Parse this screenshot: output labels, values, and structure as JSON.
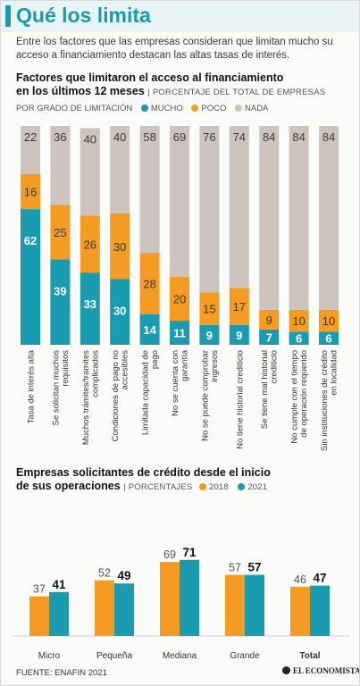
{
  "header": {
    "title": "Qué los limita",
    "subtitle": "Entre los factores que las empresas consideran que limitan mucho su acceso a financiamiento destacan las altas tasas de interés."
  },
  "colors": {
    "mucho": "#1a9bb0",
    "poco": "#f39b23",
    "nada": "#cdc5bd",
    "y2018": "#f39b23",
    "y2021": "#1a9bb0"
  },
  "chart1": {
    "title_line1": "Factores que limitaron el acceso al financiamiento",
    "title_line2": "en los últimos 12 meses",
    "units": "PORCENTAJE DEL TOTAL DE EMPRESAS",
    "legend_prefix": "POR GRADO DE LIMITACIÓN",
    "legend_mucho": "MUCHO",
    "legend_poco": "POCO",
    "legend_nada": "NADA"
  },
  "chart2": {
    "title_line1": "Empresas solicitantes de crédito desde el inicio",
    "title_line2": "de sus operaciones",
    "units": "PORCENTAJES",
    "legend_2018": "2018",
    "legend_2021": "2021"
  },
  "chart_data": [
    {
      "type": "bar",
      "stacked": true,
      "series": [
        {
          "name": "MUCHO",
          "values": [
            62,
            39,
            33,
            30,
            14,
            11,
            9,
            9,
            7,
            6,
            6
          ]
        },
        {
          "name": "POCO",
          "values": [
            16,
            25,
            26,
            30,
            28,
            20,
            15,
            17,
            9,
            10,
            10
          ]
        },
        {
          "name": "NADA",
          "values": [
            22,
            36,
            40,
            40,
            58,
            69,
            76,
            74,
            84,
            84,
            84
          ]
        }
      ],
      "categories": [
        [
          "Tasa de interés alta"
        ],
        [
          "Se solicitan muchos",
          "requisitos"
        ],
        [
          "Muchos trámites/tramites",
          "complicados"
        ],
        [
          "Condiciones de pago no",
          "accesibles"
        ],
        [
          "Limitada capacidad de",
          "pago"
        ],
        [
          "No se cuenta con",
          "garantía"
        ],
        [
          "No se puede comprobar",
          "ingresos"
        ],
        [
          "No tiene historial crediticio"
        ],
        [
          "Se tiene mal historial",
          "crediticio"
        ],
        [
          "No cumple con el tiempo",
          "de operación requerido"
        ],
        [
          "Sin instituciones de crédito",
          "en localidad"
        ]
      ]
    },
    {
      "type": "bar",
      "categories": [
        "Micro",
        "Pequeña",
        "Mediana",
        "Grande",
        "Total"
      ],
      "series": [
        {
          "name": "2018",
          "values": [
            37,
            52,
            69,
            57,
            46
          ]
        },
        {
          "name": "2021",
          "values": [
            41,
            49,
            71,
            57,
            47
          ]
        }
      ]
    }
  ],
  "footer": {
    "source": "FUENTE: ENAFIN 2021",
    "logo": "EL ECONOMISTA"
  }
}
